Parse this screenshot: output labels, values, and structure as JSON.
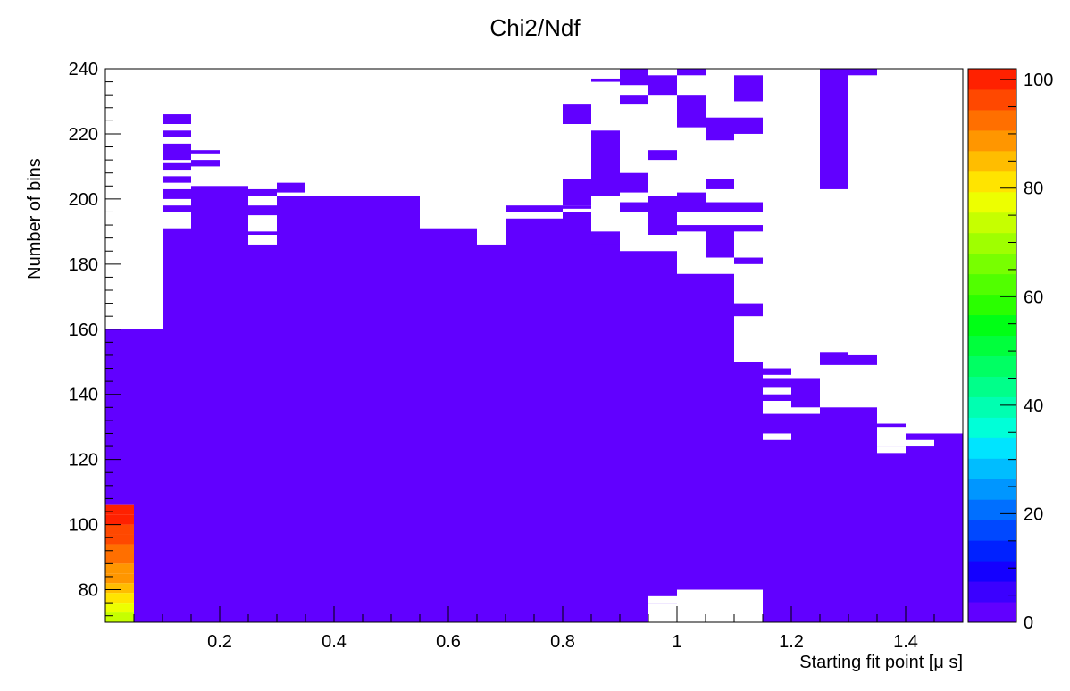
{
  "chart_data": {
    "type": "heatmap",
    "title": "Chi2/Ndf",
    "xlabel": "Starting fit point [μ s]",
    "ylabel": "Number of bins",
    "xlim": [
      0.0,
      1.5
    ],
    "ylim": [
      70,
      240
    ],
    "zlim": [
      0,
      102
    ],
    "x_ticks": [
      "0.2",
      "0.4",
      "0.6",
      "0.8",
      "1",
      "1.2",
      "1.4"
    ],
    "y_ticks": [
      "80",
      "100",
      "120",
      "140",
      "160",
      "180",
      "200",
      "220",
      "240"
    ],
    "z_ticks": [
      "0",
      "20",
      "40",
      "60",
      "80",
      "100"
    ],
    "palette": [
      "#6100ff",
      "#3b00ff",
      "#1400ff",
      "#0021ff",
      "#0048ff",
      "#006fff",
      "#0096ff",
      "#00bdff",
      "#00e4ff",
      "#00ffd8",
      "#00ffb1",
      "#00ff8a",
      "#00ff63",
      "#00ff3c",
      "#00ff15",
      "#2aff00",
      "#51ff00",
      "#78ff00",
      "#9fff00",
      "#c6ff00",
      "#edff00",
      "#ffe400",
      "#ffbd00",
      "#ff9600",
      "#ff6f00",
      "#ff4800",
      "#ff2100"
    ],
    "grid": false,
    "legend": "color scale on right",
    "filled_cells_note": "Most cells have Chi2/Ndf close to 0 (violet). High values occur only at starting fit point near 0 with bin counts 70-106.",
    "hot_cells": [
      {
        "x": [
          0.0,
          0.05
        ],
        "y": [
          70,
          73
        ],
        "z": 74
      },
      {
        "x": [
          0.0,
          0.05
        ],
        "y": [
          73,
          76
        ],
        "z": 79
      },
      {
        "x": [
          0.0,
          0.05
        ],
        "y": [
          76,
          79
        ],
        "z": 83
      },
      {
        "x": [
          0.0,
          0.05
        ],
        "y": [
          79,
          82
        ],
        "z": 85
      },
      {
        "x": [
          0.0,
          0.05
        ],
        "y": [
          82,
          85
        ],
        "z": 88
      },
      {
        "x": [
          0.0,
          0.05
        ],
        "y": [
          85,
          88
        ],
        "z": 90
      },
      {
        "x": [
          0.0,
          0.05
        ],
        "y": [
          88,
          91
        ],
        "z": 92
      },
      {
        "x": [
          0.0,
          0.05
        ],
        "y": [
          91,
          94
        ],
        "z": 94
      },
      {
        "x": [
          0.0,
          0.05
        ],
        "y": [
          94,
          97
        ],
        "z": 96
      },
      {
        "x": [
          0.0,
          0.05
        ],
        "y": [
          97,
          100
        ],
        "z": 98
      },
      {
        "x": [
          0.0,
          0.05
        ],
        "y": [
          100,
          103
        ],
        "z": 99
      },
      {
        "x": [
          0.0,
          0.05
        ],
        "y": [
          103,
          106
        ],
        "z": 101
      }
    ],
    "coverage_columns": [
      {
        "x": [
          0.0,
          0.05
        ],
        "y": [
          106,
          160
        ]
      },
      {
        "x": [
          0.05,
          0.1
        ],
        "y": [
          70,
          160
        ]
      },
      {
        "x": [
          0.1,
          0.15
        ],
        "y": [
          70,
          191
        ]
      },
      {
        "x": [
          0.15,
          0.25
        ],
        "y": [
          70,
          204
        ]
      },
      {
        "x": [
          0.25,
          0.3
        ],
        "y": [
          70,
          186
        ]
      },
      {
        "x": [
          0.3,
          0.55
        ],
        "y": [
          70,
          201
        ]
      },
      {
        "x": [
          0.55,
          0.65
        ],
        "y": [
          70,
          191
        ]
      },
      {
        "x": [
          0.65,
          0.7
        ],
        "y": [
          70,
          186
        ]
      },
      {
        "x": [
          0.7,
          0.8
        ],
        "y": [
          70,
          194
        ]
      },
      {
        "x": [
          0.8,
          0.85
        ],
        "y": [
          70,
          196
        ]
      },
      {
        "x": [
          0.85,
          0.9
        ],
        "y": [
          70,
          190
        ]
      },
      {
        "x": [
          0.9,
          0.95
        ],
        "y": [
          70,
          184
        ]
      },
      {
        "x": [
          0.95,
          1.0
        ],
        "y": [
          70,
          184
        ]
      },
      {
        "x": [
          1.0,
          1.1
        ],
        "y": [
          70,
          177
        ]
      },
      {
        "x": [
          1.1,
          1.15
        ],
        "y": [
          70,
          168
        ]
      },
      {
        "x": [
          1.15,
          1.25
        ],
        "y": [
          70,
          145
        ]
      },
      {
        "x": [
          1.25,
          1.35
        ],
        "y": [
          70,
          136
        ]
      },
      {
        "x": [
          1.35,
          1.4
        ],
        "y": [
          70,
          131
        ]
      },
      {
        "x": [
          1.4,
          1.5
        ],
        "y": [
          70,
          128
        ]
      }
    ]
  }
}
